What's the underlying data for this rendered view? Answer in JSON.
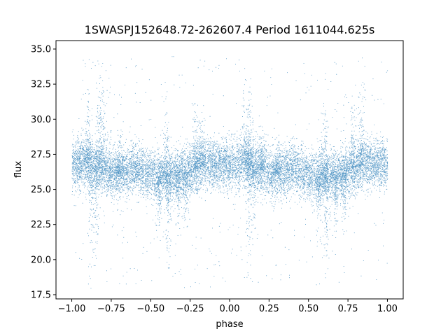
{
  "chart_data": {
    "type": "scatter",
    "title": "1SWASPJ152648.72-262607.4 Period 1611044.625s",
    "xlabel": "phase",
    "ylabel": "flux",
    "xlim": [
      -1.1,
      1.1
    ],
    "ylim": [
      17.2,
      35.6
    ],
    "xticks": [
      -1.0,
      -0.75,
      -0.5,
      -0.25,
      0.0,
      0.25,
      0.5,
      0.75,
      1.0
    ],
    "xtick_labels": [
      "−1.00",
      "−0.75",
      "−0.50",
      "−0.25",
      "0.00",
      "0.25",
      "0.50",
      "0.75",
      "1.00"
    ],
    "yticks": [
      17.5,
      20.0,
      22.5,
      25.0,
      27.5,
      30.0,
      32.5,
      35.0
    ],
    "ytick_labels": [
      "17.5",
      "20.0",
      "22.5",
      "25.0",
      "27.5",
      "30.0",
      "32.5",
      "35.0"
    ],
    "grid": false,
    "series": [
      {
        "color": "#1f77b4",
        "phase_range": [
          -1.0,
          1.0
        ],
        "base_flux": 26.3,
        "baseline_profile": [
          [
            -1.0,
            26.8
          ],
          [
            -0.9,
            26.9
          ],
          [
            -0.8,
            26.4
          ],
          [
            -0.7,
            26.1
          ],
          [
            -0.6,
            26.6
          ],
          [
            -0.5,
            26.0
          ],
          [
            -0.42,
            25.9
          ],
          [
            -0.35,
            26.0
          ],
          [
            -0.25,
            26.3
          ],
          [
            -0.15,
            26.8
          ],
          [
            0.0,
            26.8
          ],
          [
            0.1,
            26.9
          ],
          [
            0.2,
            26.4
          ],
          [
            0.3,
            26.1
          ],
          [
            0.4,
            26.6
          ],
          [
            0.5,
            26.0
          ],
          [
            0.58,
            25.9
          ],
          [
            0.65,
            26.0
          ],
          [
            0.75,
            26.3
          ],
          [
            0.85,
            26.8
          ],
          [
            1.0,
            26.8
          ]
        ],
        "flux_spread": 0.85,
        "upper_excursions": [
          {
            "phase": -0.9,
            "peak": 34.0
          },
          {
            "phase": -0.83,
            "peak": 34.5
          },
          {
            "phase": -0.8,
            "peak": 33.0
          },
          {
            "phase": -0.7,
            "peak": 29.5
          },
          {
            "phase": -0.4,
            "peak": 32.0
          },
          {
            "phase": -0.22,
            "peak": 31.5
          },
          {
            "phase": -0.18,
            "peak": 30.5
          },
          {
            "phase": 0.1,
            "peak": 33.0
          },
          {
            "phase": 0.13,
            "peak": 32.5
          },
          {
            "phase": 0.2,
            "peak": 29.5
          },
          {
            "phase": 0.3,
            "peak": 29.0
          },
          {
            "phase": 0.6,
            "peak": 32.0
          },
          {
            "phase": 0.78,
            "peak": 32.0
          },
          {
            "phase": 0.83,
            "peak": 33.0
          }
        ],
        "lower_excursions": [
          {
            "phase": -0.88,
            "trough": 18.0
          },
          {
            "phase": -0.85,
            "trough": 19.5
          },
          {
            "phase": -0.45,
            "trough": 21.0
          },
          {
            "phase": -0.39,
            "trough": 18.7
          },
          {
            "phase": -0.33,
            "trough": 21.5
          },
          {
            "phase": -0.28,
            "trough": 21.8
          },
          {
            "phase": 0.12,
            "trough": 18.0
          },
          {
            "phase": 0.15,
            "trough": 21.0
          },
          {
            "phase": 0.56,
            "trough": 21.0
          },
          {
            "phase": 0.61,
            "trough": 18.7
          },
          {
            "phase": 0.67,
            "trough": 21.5
          },
          {
            "phase": 0.72,
            "trough": 21.8
          }
        ],
        "n_points": 14000
      }
    ]
  }
}
